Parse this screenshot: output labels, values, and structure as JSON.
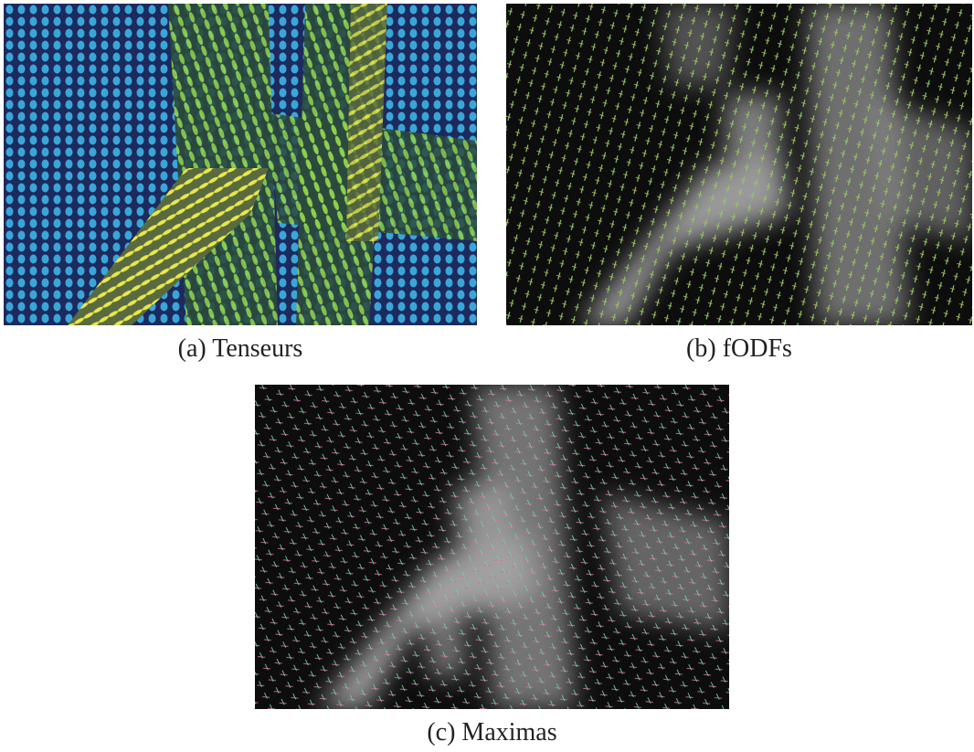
{
  "figure": {
    "panels": [
      {
        "caption": "(a) Tenseurs"
      },
      {
        "caption": "(b) fODFs"
      },
      {
        "caption": "(c) Maximas"
      }
    ]
  }
}
